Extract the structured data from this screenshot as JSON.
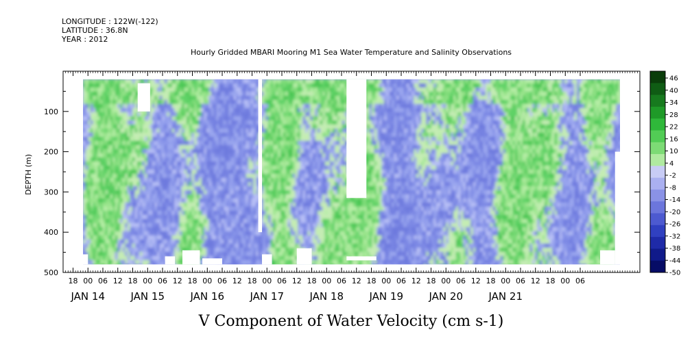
{
  "header": {
    "longitude": "LONGITUDE : 122W(-122)",
    "latitude": "LATITUDE : 36.8N",
    "year": "YEAR : 2012"
  },
  "chart_data": {
    "type": "heatmap",
    "title": "Hourly Gridded MBARI Mooring M1 Sea Water Temperature and Salinity Observations",
    "xlabel": "V Component of Water Velocity (cm s-1)",
    "ylabel": "DEPTH (m)",
    "y_range": [
      0,
      500
    ],
    "y_ticks": [
      100,
      200,
      300,
      400,
      500
    ],
    "x_range_hours": [
      -10,
      222
    ],
    "hour_ticks": [
      {
        "h": -6,
        "label": "18"
      },
      {
        "h": 0,
        "label": "00"
      },
      {
        "h": 6,
        "label": "06"
      },
      {
        "h": 12,
        "label": "12"
      },
      {
        "h": 18,
        "label": "18"
      },
      {
        "h": 24,
        "label": "00"
      },
      {
        "h": 30,
        "label": "06"
      },
      {
        "h": 36,
        "label": "12"
      },
      {
        "h": 42,
        "label": "18"
      },
      {
        "h": 48,
        "label": "00"
      },
      {
        "h": 54,
        "label": "06"
      },
      {
        "h": 60,
        "label": "12"
      },
      {
        "h": 66,
        "label": "18"
      },
      {
        "h": 72,
        "label": "00"
      },
      {
        "h": 78,
        "label": "06"
      },
      {
        "h": 84,
        "label": "12"
      },
      {
        "h": 90,
        "label": "18"
      },
      {
        "h": 96,
        "label": "00"
      },
      {
        "h": 102,
        "label": "06"
      },
      {
        "h": 108,
        "label": "12"
      },
      {
        "h": 114,
        "label": "18"
      },
      {
        "h": 120,
        "label": "00"
      },
      {
        "h": 126,
        "label": "06"
      },
      {
        "h": 132,
        "label": "12"
      },
      {
        "h": 138,
        "label": "18"
      },
      {
        "h": 144,
        "label": "00"
      },
      {
        "h": 150,
        "label": "06"
      },
      {
        "h": 156,
        "label": "12"
      },
      {
        "h": 162,
        "label": "18"
      },
      {
        "h": 168,
        "label": "00"
      },
      {
        "h": 174,
        "label": "06"
      },
      {
        "h": 180,
        "label": "12"
      },
      {
        "h": 186,
        "label": "18"
      },
      {
        "h": 192,
        "label": "00"
      },
      {
        "h": 198,
        "label": "06"
      }
    ],
    "date_labels": [
      {
        "h": 0,
        "label": "JAN 14"
      },
      {
        "h": 24,
        "label": "JAN 15"
      },
      {
        "h": 48,
        "label": "JAN 16"
      },
      {
        "h": 72,
        "label": "JAN 17"
      },
      {
        "h": 96,
        "label": "JAN 18"
      },
      {
        "h": 120,
        "label": "JAN 19"
      },
      {
        "h": 144,
        "label": "JAN 20"
      },
      {
        "h": 168,
        "label": "JAN 21"
      }
    ],
    "data_extent": {
      "h_start": -2,
      "h_end": 214,
      "depth_top": 20,
      "depth_bottom": 480
    },
    "missing_regions": [
      {
        "h0": 20,
        "h1": 25,
        "d0": 30,
        "d1": 100
      },
      {
        "h0": 104,
        "h1": 112,
        "d0": 20,
        "d1": 315
      },
      {
        "h0": 68.5,
        "h1": 70,
        "d0": 20,
        "d1": 400
      },
      {
        "h0": 212,
        "h1": 214,
        "d0": 200,
        "d1": 480
      },
      {
        "h0": 38,
        "h1": 45,
        "d0": 445,
        "d1": 480
      },
      {
        "h0": 46,
        "h1": 54,
        "d0": 465,
        "d1": 480
      },
      {
        "h0": 31,
        "h1": 35,
        "d0": 460,
        "d1": 480
      },
      {
        "h0": -2,
        "h1": 0,
        "d0": 455,
        "d1": 480
      },
      {
        "h0": 70,
        "h1": 74,
        "d0": 455,
        "d1": 480
      },
      {
        "h0": 84,
        "h1": 90,
        "d0": 440,
        "d1": 480
      },
      {
        "h0": 104,
        "h1": 116,
        "d0": 460,
        "d1": 470
      },
      {
        "h0": 206,
        "h1": 212,
        "d0": 445,
        "d1": 480
      }
    ],
    "colorbar": {
      "labels": [
        46,
        40,
        34,
        28,
        22,
        16,
        10,
        4,
        -2,
        -8,
        -14,
        -20,
        -26,
        -32,
        -38,
        -44,
        -50
      ],
      "min": -50,
      "max": 46,
      "colors_top_to_bottom": [
        "#0a3d0a",
        "#0f5c14",
        "#177a1e",
        "#1f9a28",
        "#2fb83a",
        "#52cc55",
        "#7ddb75",
        "#b0eaa0",
        "#c8ccf5",
        "#aab0f0",
        "#8a92e6",
        "#6c76dc",
        "#4d5ad0",
        "#3040c0",
        "#1e2aa8",
        "#101a8a",
        "#060c66"
      ]
    }
  }
}
